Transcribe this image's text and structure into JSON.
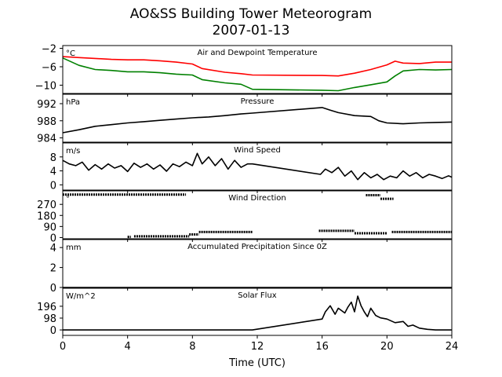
{
  "figure": {
    "title": "AO&SS Building Tower Meteorogram",
    "subtitle": "2007-01-13",
    "xlabel": "Time (UTC)"
  },
  "chart_data": [
    {
      "type": "line",
      "title": "Air and Dewpoint Temperature",
      "unit_label": "°C",
      "ylim": [
        -11.8,
        -1.4
      ],
      "yticks": [
        -2,
        -6,
        -10
      ],
      "xlim": [
        0,
        24
      ],
      "xticks": [
        0,
        4,
        8,
        12,
        16,
        20,
        24
      ],
      "series": [
        {
          "color": "#ff0000",
          "x": [
            0,
            1,
            2,
            3,
            4,
            5,
            6,
            7,
            8,
            8.6,
            10,
            11,
            11.7,
            16,
            17,
            18,
            19,
            20,
            20.5,
            21,
            22,
            23,
            24
          ],
          "y": [
            -3.8,
            -4.0,
            -4.2,
            -4.4,
            -4.5,
            -4.5,
            -4.7,
            -5.0,
            -5.4,
            -6.4,
            -7.2,
            -7.5,
            -7.8,
            -7.9,
            -8.0,
            -7.4,
            -6.6,
            -5.6,
            -4.8,
            -5.2,
            -5.3,
            -5.0,
            -5.0
          ]
        },
        {
          "color": "#008000",
          "x": [
            0,
            1,
            2,
            3,
            4,
            5,
            6,
            7,
            8,
            8.6,
            10,
            11,
            11.7,
            16,
            17,
            18,
            19,
            20,
            20.5,
            21,
            22,
            23,
            24
          ],
          "y": [
            -4.1,
            -5.7,
            -6.6,
            -6.8,
            -7.1,
            -7.1,
            -7.3,
            -7.6,
            -7.8,
            -8.8,
            -9.5,
            -9.8,
            -10.9,
            -11.1,
            -11.2,
            -10.5,
            -9.9,
            -9.3,
            -8.0,
            -6.9,
            -6.6,
            -6.7,
            -6.6
          ]
        }
      ]
    },
    {
      "type": "line",
      "title": "Pressure",
      "unit_label": "hPa",
      "ylim": [
        983.0,
        994.2
      ],
      "yticks": [
        984,
        988,
        992
      ],
      "series": [
        {
          "color": "#000000",
          "x": [
            0,
            1,
            2,
            3,
            4,
            5,
            6,
            7,
            8,
            9,
            10,
            11,
            11.7,
            16,
            16.5,
            17,
            18,
            19,
            19.5,
            20,
            21,
            22,
            23,
            24
          ],
          "y": [
            985.2,
            985.9,
            986.7,
            987.1,
            987.5,
            987.8,
            988.1,
            988.4,
            988.7,
            988.9,
            989.2,
            989.6,
            989.8,
            991.1,
            990.5,
            989.9,
            989.2,
            989.0,
            988.0,
            987.5,
            987.3,
            987.5,
            987.6,
            987.7
          ]
        }
      ]
    },
    {
      "type": "line",
      "title": "Wind Speed",
      "unit_label": "m/s",
      "ylim": [
        -1.5,
        12
      ],
      "yticks": [
        0,
        4,
        8
      ],
      "series": [
        {
          "color": "#000000",
          "x": [
            0,
            0.4,
            0.8,
            1.2,
            1.6,
            2.0,
            2.4,
            2.8,
            3.2,
            3.6,
            4.0,
            4.4,
            4.8,
            5.2,
            5.6,
            6.0,
            6.4,
            6.8,
            7.2,
            7.6,
            8.0,
            8.3,
            8.6,
            9.0,
            9.4,
            9.8,
            10.2,
            10.6,
            11.0,
            11.4,
            11.7,
            15.9,
            16.2,
            16.6,
            17.0,
            17.4,
            17.8,
            18.2,
            18.6,
            19.0,
            19.4,
            19.8,
            20.2,
            20.6,
            21.0,
            21.4,
            21.8,
            22.2,
            22.6,
            23.0,
            23.4,
            23.8,
            24
          ],
          "y": [
            7.0,
            6.0,
            5.5,
            6.5,
            4.2,
            5.8,
            4.5,
            6.0,
            4.8,
            5.5,
            3.8,
            6.2,
            5.0,
            6.0,
            4.5,
            5.7,
            3.9,
            6.0,
            5.2,
            6.5,
            5.5,
            9.0,
            6.0,
            8.0,
            5.5,
            7.5,
            4.5,
            7.0,
            5.0,
            6.0,
            6.0,
            3.0,
            4.5,
            3.5,
            5.0,
            2.5,
            4.0,
            1.5,
            3.5,
            2.0,
            3.0,
            1.5,
            2.5,
            2.0,
            4.0,
            2.5,
            3.5,
            2.0,
            3.0,
            2.5,
            1.8,
            2.6,
            2.2
          ]
        }
      ]
    },
    {
      "type": "scatter",
      "title": "Wind Direction",
      "unit_label": "°",
      "ylim": [
        -10,
        380
      ],
      "yticks": [
        0,
        90,
        180,
        270
      ],
      "series": [
        {
          "color": "#000000",
          "segments": [
            {
              "x0": 0.0,
              "x1": 7.6,
              "y": 350
            },
            {
              "x0": 18.7,
              "x1": 19.6,
              "y": 345
            },
            {
              "x0": 19.6,
              "x1": 20.4,
              "y": 315
            },
            {
              "x0": 4.0,
              "x1": 4.2,
              "y": 5
            },
            {
              "x0": 4.4,
              "x1": 7.8,
              "y": 10
            },
            {
              "x0": 7.8,
              "x1": 8.4,
              "y": 25
            },
            {
              "x0": 8.4,
              "x1": 11.7,
              "y": 45
            },
            {
              "x0": 15.8,
              "x1": 18.0,
              "y": 55
            },
            {
              "x0": 18.0,
              "x1": 20.0,
              "y": 35
            },
            {
              "x0": 20.3,
              "x1": 24.0,
              "y": 45
            }
          ]
        }
      ]
    },
    {
      "type": "line",
      "title": "Accumulated Precipitation Since 0Z",
      "unit_label": "mm",
      "ylim": [
        0,
        4.8
      ],
      "yticks": [
        0,
        2,
        4
      ],
      "series": [
        {
          "color": "#000000",
          "x": [
            0,
            24
          ],
          "y": [
            0,
            0
          ]
        }
      ]
    },
    {
      "type": "line",
      "title": "Solar Flux",
      "unit_label": "W/m^2",
      "ylim": [
        -45,
        345
      ],
      "yticks": [
        0,
        98,
        196
      ],
      "series": [
        {
          "color": "#000000",
          "x": [
            0,
            11.7,
            16.0,
            16.2,
            16.5,
            16.8,
            17.0,
            17.2,
            17.4,
            17.6,
            17.8,
            18.0,
            18.2,
            18.4,
            18.6,
            18.8,
            19.0,
            19.3,
            19.6,
            20.0,
            20.5,
            21.0,
            21.3,
            21.6,
            22.0,
            22.5,
            23.0,
            24.0
          ],
          "y": [
            0,
            0,
            90,
            150,
            200,
            130,
            180,
            160,
            140,
            190,
            230,
            150,
            280,
            200,
            150,
            110,
            180,
            120,
            100,
            90,
            60,
            70,
            30,
            40,
            15,
            5,
            0,
            0
          ]
        }
      ]
    }
  ]
}
